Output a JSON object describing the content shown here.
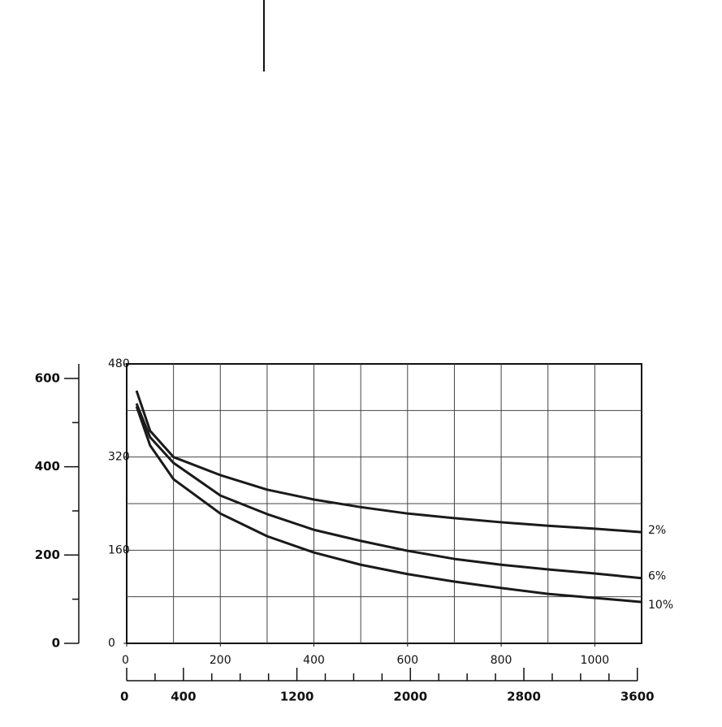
{
  "chart_data": {
    "type": "line",
    "x": [
      21,
      50,
      100,
      200,
      300,
      400,
      500,
      600,
      700,
      800,
      900,
      1000,
      1100
    ],
    "series": [
      {
        "name": "2%",
        "color": "#1a1a1a",
        "values": [
          434,
          365,
          320,
          289,
          264,
          247,
          234,
          223,
          215,
          208,
          202,
          197,
          191
        ]
      },
      {
        "name": "6%",
        "color": "#1a1a1a",
        "values": [
          412,
          354,
          310,
          254,
          222,
          195,
          176,
          159,
          145,
          135,
          127,
          120,
          112
        ]
      },
      {
        "name": "10%",
        "color": "#1a1a1a",
        "values": [
          407,
          340,
          282,
          223,
          184,
          156,
          135,
          119,
          106,
          95,
          85,
          78,
          71
        ]
      }
    ],
    "xlim": [
      0,
      1100
    ],
    "xticks": [
      0,
      200,
      400,
      600,
      800,
      1000
    ],
    "xgrid": [
      100,
      200,
      300,
      400,
      500,
      600,
      700,
      800,
      900,
      1000
    ],
    "ylim": [
      0,
      480
    ],
    "yticks": [
      0,
      160,
      320,
      480
    ],
    "ygrid": [
      80,
      160,
      240,
      320,
      400
    ],
    "y2lim": [
      0,
      633
    ],
    "y2ticks": [
      0,
      200,
      400,
      600
    ],
    "y2minor": [
      100,
      300,
      500
    ],
    "x2lim": [
      0,
      3630
    ],
    "x2ticks": [
      0,
      400,
      1200,
      2000,
      2800,
      3600
    ],
    "x2minor": [
      200,
      600,
      800,
      1000,
      1400,
      1600,
      1800,
      2200,
      2400,
      2600,
      3000,
      3200,
      3400
    ],
    "grid": true
  }
}
